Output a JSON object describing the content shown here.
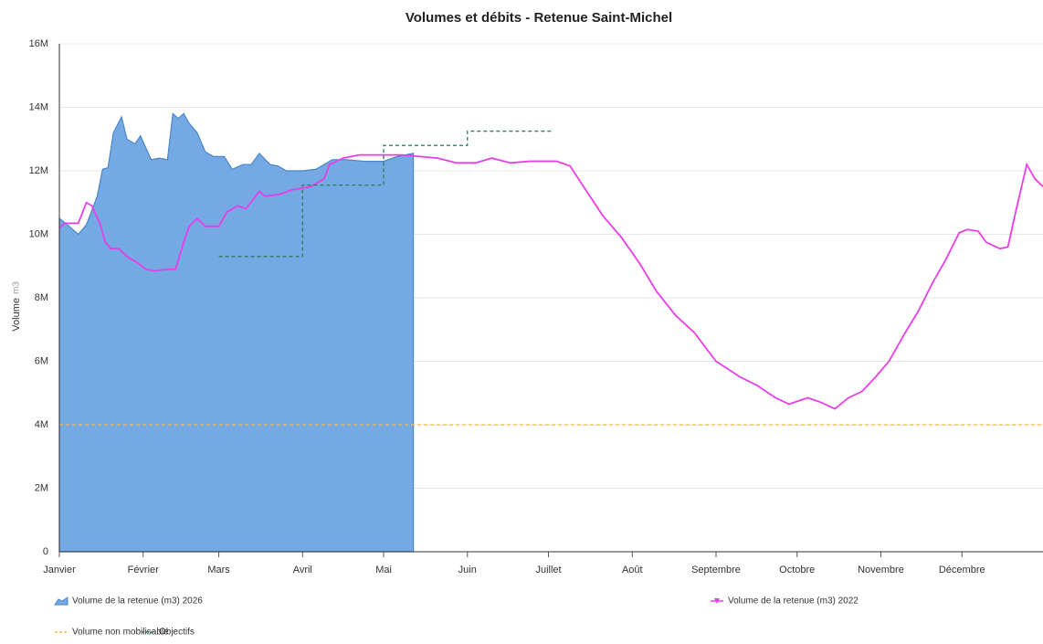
{
  "chart_data": {
    "type": "line",
    "title": "Volumes et débits - Retenue Saint-Michel",
    "y_label": "Volume",
    "y_unit": "m3",
    "xlim": [
      0,
      364
    ],
    "xticks": [
      {
        "value": 0,
        "label": "Janvier"
      },
      {
        "value": 31,
        "label": "Février"
      },
      {
        "value": 59,
        "label": "Mars"
      },
      {
        "value": 90,
        "label": "Avril"
      },
      {
        "value": 120,
        "label": "Mai"
      },
      {
        "value": 151,
        "label": "Juin"
      },
      {
        "value": 181,
        "label": "Juillet"
      },
      {
        "value": 212,
        "label": "Août"
      },
      {
        "value": 243,
        "label": "Septembre"
      },
      {
        "value": 273,
        "label": "Octobre"
      },
      {
        "value": 304,
        "label": "Novembre"
      },
      {
        "value": 334,
        "label": "Décembre"
      }
    ],
    "ylim": [
      0,
      16000000
    ],
    "yticks": [
      0,
      {
        "value": 2000000,
        "label": "2M"
      },
      {
        "value": 4000000,
        "label": "4M"
      },
      {
        "value": 6000000,
        "label": "6M"
      },
      {
        "value": 8000000,
        "label": "8M"
      },
      {
        "value": 10000000,
        "label": "10M"
      },
      {
        "value": 12000000,
        "label": "12M"
      },
      {
        "value": 14000000,
        "label": "14M"
      },
      {
        "value": 16000000,
        "label": "16M"
      }
    ],
    "grid": true,
    "series": [
      {
        "name": "Volume de la retenue (m3) 2026",
        "style": "area",
        "color": "#74a9e3",
        "x": [
          0,
          3,
          7,
          10,
          14,
          16,
          18,
          20,
          23,
          25,
          28,
          30,
          34,
          37,
          40,
          42,
          44,
          46,
          48,
          51,
          54,
          57,
          61,
          64,
          68,
          71,
          74,
          78,
          81,
          84,
          90,
          95,
          98,
          101,
          106,
          113,
          120,
          125,
          131
        ],
        "values": [
          10500000,
          10300000,
          10000000,
          10300000,
          11200000,
          12050000,
          12100000,
          13200000,
          13700000,
          13000000,
          12850000,
          13100000,
          12350000,
          12400000,
          12350000,
          13800000,
          13650000,
          13800000,
          13500000,
          13200000,
          12600000,
          12450000,
          12450000,
          12050000,
          12200000,
          12200000,
          12550000,
          12200000,
          12150000,
          12000000,
          12000000,
          12050000,
          12200000,
          12350000,
          12350000,
          12300000,
          12300000,
          12450000,
          12550000
        ]
      },
      {
        "name": "Volume de la retenue (m3) 2022",
        "style": "line",
        "color": "#e83ee8",
        "x": [
          0,
          2,
          5,
          7,
          10,
          12,
          15,
          17,
          19,
          22,
          25,
          29,
          32,
          35,
          41,
          43,
          46,
          48,
          51,
          54,
          59,
          62,
          66,
          69,
          74,
          76,
          81,
          86,
          93,
          98,
          100,
          105,
          111,
          120,
          127,
          140,
          147,
          154,
          160,
          167,
          174,
          184,
          189,
          194,
          201,
          208,
          215,
          221,
          228,
          235,
          243,
          252,
          258,
          265,
          270,
          277,
          282,
          287,
          292,
          297,
          302,
          307,
          313,
          318,
          323,
          328,
          333,
          336,
          340,
          343,
          348,
          351,
          354,
          358,
          361,
          364
        ],
        "values": [
          10200000,
          10350000,
          10350000,
          10350000,
          11000000,
          10900000,
          10350000,
          9750000,
          9550000,
          9550000,
          9300000,
          9100000,
          8900000,
          8850000,
          8900000,
          8900000,
          9750000,
          10250000,
          10500000,
          10250000,
          10250000,
          10700000,
          10900000,
          10800000,
          11350000,
          11200000,
          11250000,
          11400000,
          11500000,
          11750000,
          12200000,
          12400000,
          12500000,
          12500000,
          12500000,
          12400000,
          12250000,
          12250000,
          12400000,
          12250000,
          12300000,
          12300000,
          12150000,
          11500000,
          10600000,
          9900000,
          9050000,
          8200000,
          7450000,
          6900000,
          6000000,
          5500000,
          5250000,
          4850000,
          4650000,
          4850000,
          4700000,
          4500000,
          4850000,
          5050000,
          5500000,
          6000000,
          6900000,
          7600000,
          8450000,
          9200000,
          10050000,
          10150000,
          10100000,
          9750000,
          9550000,
          9600000,
          10750000,
          12200000,
          11750000,
          11500000
        ]
      },
      {
        "name": "Volume non mobilisable",
        "style": "dashed",
        "color": "#f5b942",
        "x": [
          0,
          364
        ],
        "values": [
          4000000,
          4000000
        ]
      },
      {
        "name": "Objectifs",
        "style": "dashed",
        "color": "#2e7d5b",
        "x": [
          59,
          90,
          90,
          120,
          120,
          151,
          151,
          182
        ],
        "values": [
          9300000,
          9300000,
          11550000,
          11550000,
          12800000,
          12800000,
          13250000,
          13250000
        ]
      }
    ]
  }
}
